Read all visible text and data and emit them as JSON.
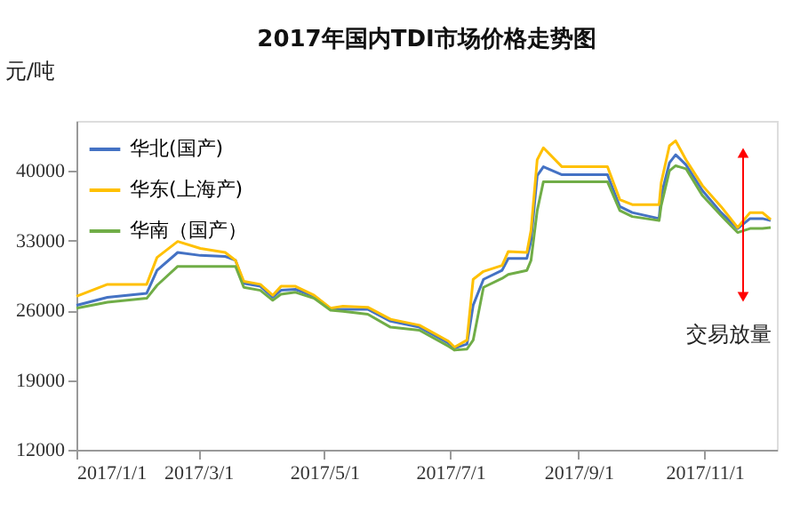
{
  "chart_data": {
    "type": "line",
    "title": "2017年国内TDI市场价格走势图",
    "ylabel": "元/吨",
    "x": [
      "2017-01-01",
      "2017-01-16",
      "2017-02-04",
      "2017-02-09",
      "2017-02-19",
      "2017-03-02",
      "2017-03-14",
      "2017-03-19",
      "2017-03-23",
      "2017-03-31",
      "2017-04-06",
      "2017-04-10",
      "2017-04-17",
      "2017-04-26",
      "2017-05-04",
      "2017-05-10",
      "2017-05-22",
      "2017-06-02",
      "2017-06-16",
      "2017-06-30",
      "2017-07-03",
      "2017-07-09",
      "2017-07-12",
      "2017-07-17",
      "2017-07-26",
      "2017-07-29",
      "2017-08-07",
      "2017-08-09",
      "2017-08-12",
      "2017-08-15",
      "2017-08-24",
      "2017-09-15",
      "2017-09-21",
      "2017-09-27",
      "2017-10-10",
      "2017-10-11",
      "2017-10-15",
      "2017-10-18",
      "2017-10-23",
      "2017-10-31",
      "2017-11-09",
      "2017-11-17",
      "2017-11-23",
      "2017-11-29",
      "2017-12-03"
    ],
    "series": [
      {
        "name": "华北(国产)",
        "color": "#4472c4",
        "values": [
          26500,
          27300,
          27700,
          30000,
          31800,
          31500,
          31400,
          31000,
          28700,
          28400,
          27300,
          28000,
          28100,
          27400,
          26100,
          26100,
          26100,
          24900,
          24300,
          22700,
          22200,
          22600,
          26500,
          29100,
          30000,
          31200,
          31200,
          33000,
          39500,
          40400,
          39600,
          39600,
          36400,
          35800,
          35200,
          37500,
          40800,
          41600,
          40600,
          38000,
          35800,
          34200,
          35200,
          35200,
          35000
        ]
      },
      {
        "name": "华东(上海产)",
        "color": "#ffc000",
        "values": [
          27400,
          28600,
          28600,
          31300,
          32900,
          32200,
          31800,
          31000,
          28900,
          28600,
          27500,
          28400,
          28400,
          27500,
          26200,
          26400,
          26300,
          25100,
          24500,
          22900,
          22300,
          23000,
          29100,
          29900,
          30500,
          31900,
          31800,
          34000,
          41100,
          42300,
          40400,
          40400,
          37100,
          36600,
          36600,
          38800,
          42500,
          43000,
          41100,
          38500,
          36400,
          34300,
          35800,
          35800,
          35100
        ]
      },
      {
        "name": "华南（国产）",
        "color": "#70ad47",
        "values": [
          26200,
          26800,
          27200,
          28500,
          30400,
          30400,
          30400,
          30400,
          28300,
          28000,
          27000,
          27600,
          27800,
          27200,
          26000,
          25900,
          25600,
          24300,
          24000,
          22400,
          22000,
          22100,
          23000,
          28300,
          29200,
          29600,
          30000,
          31000,
          36000,
          38900,
          38900,
          38900,
          36000,
          35400,
          35000,
          36500,
          40000,
          40500,
          40200,
          37500,
          35500,
          33800,
          34200,
          34200,
          34300
        ]
      }
    ],
    "xlim": [
      "2017-01-01",
      "2017-12-06"
    ],
    "xticks": [
      {
        "value": "2017-01-01",
        "label": "2017/1/1"
      },
      {
        "value": "2017-03-01",
        "label": "2017/3/1"
      },
      {
        "value": "2017-05-01",
        "label": "2017/5/1"
      },
      {
        "value": "2017-07-01",
        "label": "2017/7/1"
      },
      {
        "value": "2017-09-01",
        "label": "2017/9/1"
      },
      {
        "value": "2017-11-01",
        "label": "2017/11/1"
      }
    ],
    "ylim": [
      12000,
      45000
    ],
    "yticks": [
      12000,
      19000,
      26000,
      33000,
      40000
    ],
    "annotations": [
      "交易放量"
    ],
    "grid": false,
    "legend": "top left",
    "marker": "none",
    "line_style": "solid"
  }
}
